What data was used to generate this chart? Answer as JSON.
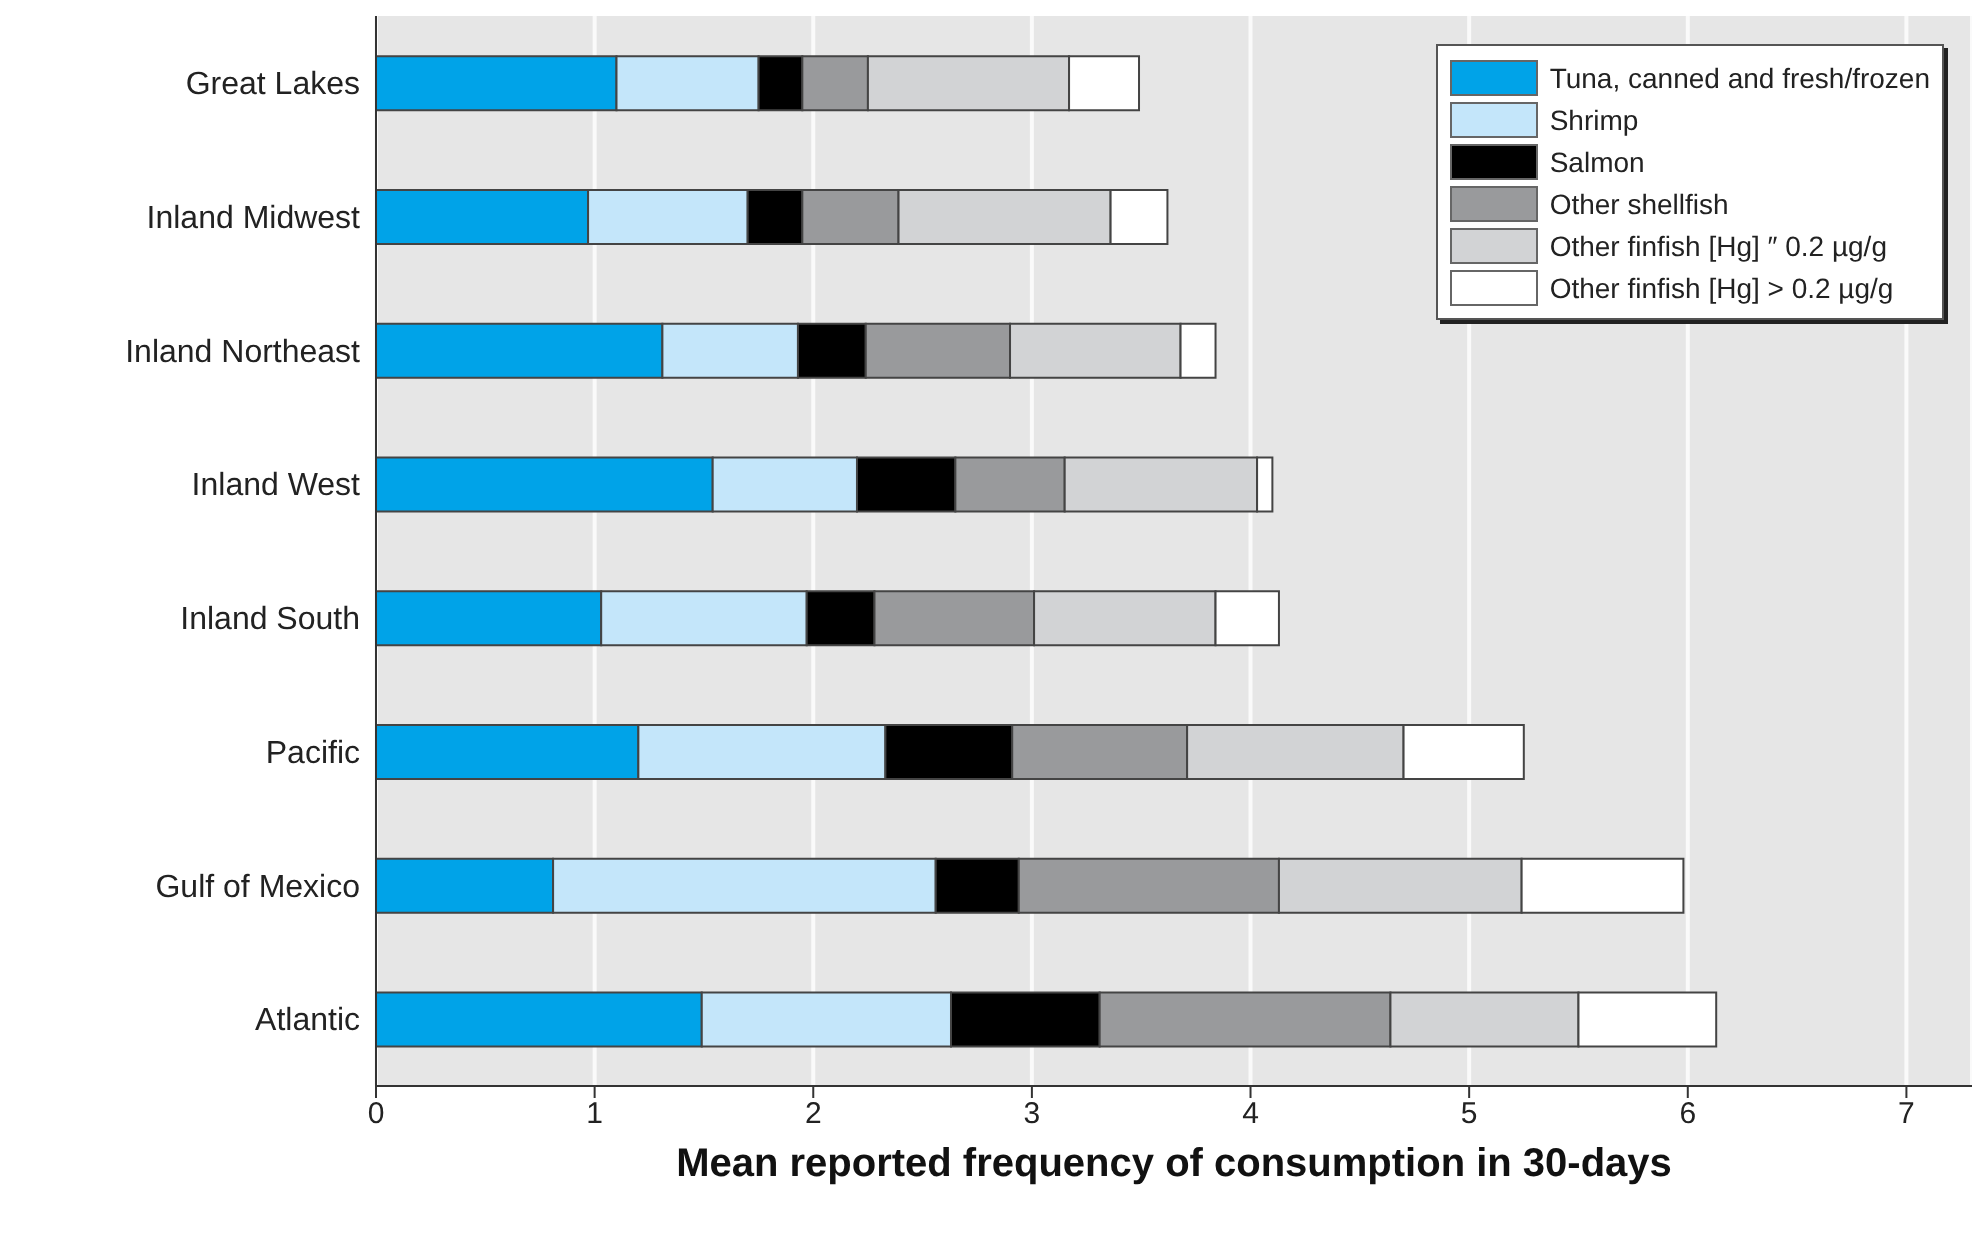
{
  "chart_data": {
    "type": "bar",
    "orientation": "horizontal",
    "stacked": true,
    "xlabel": "Mean reported frequency of consumption in 30-days",
    "categories": [
      "Great Lakes",
      "Inland Midwest",
      "Inland Northeast",
      "Inland West",
      "Inland South",
      "Pacific",
      "Gulf of Mexico",
      "Atlantic"
    ],
    "series": [
      {
        "name": "Tuna, canned and fresh/frozen",
        "color": "#00a3e8",
        "values": [
          1.1,
          0.97,
          1.31,
          1.54,
          1.03,
          1.2,
          0.81,
          1.49
        ]
      },
      {
        "name": "Shrimp",
        "color": "#c4e6fa",
        "values": [
          0.65,
          0.73,
          0.62,
          0.66,
          0.94,
          1.13,
          1.75,
          1.14
        ]
      },
      {
        "name": "Salmon",
        "color": "#000000",
        "values": [
          0.2,
          0.25,
          0.31,
          0.45,
          0.31,
          0.58,
          0.38,
          0.68
        ]
      },
      {
        "name": "Other shellfish",
        "color": "#999a9c",
        "values": [
          0.3,
          0.44,
          0.66,
          0.5,
          0.73,
          0.8,
          1.19,
          1.33
        ]
      },
      {
        "name": "Other finfish [Hg] ″ 0.2 µg/g",
        "color": "#d2d3d5",
        "values": [
          0.92,
          0.97,
          0.78,
          0.88,
          0.83,
          0.99,
          1.11,
          0.86
        ]
      },
      {
        "name": "Other finfish [Hg] > 0.2 µg/g",
        "color": "#ffffff",
        "values": [
          0.32,
          0.26,
          0.16,
          0.07,
          0.29,
          0.55,
          0.74,
          0.63
        ]
      }
    ],
    "xlim": [
      0,
      7.3
    ],
    "xticks": [
      0,
      1,
      2,
      3,
      4,
      5,
      6,
      7
    ],
    "grid": "x",
    "legend": "top right"
  }
}
